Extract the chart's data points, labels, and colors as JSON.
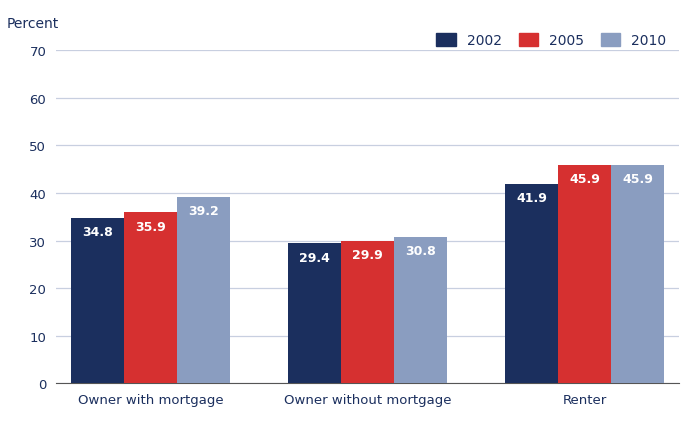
{
  "categories": [
    "Owner with mortgage",
    "Owner without mortgage",
    "Renter"
  ],
  "years": [
    "2002",
    "2005",
    "2010"
  ],
  "values": {
    "2002": [
      34.8,
      29.4,
      41.9
    ],
    "2005": [
      35.9,
      29.9,
      45.9
    ],
    "2010": [
      39.2,
      30.8,
      45.9
    ]
  },
  "colors": {
    "2002": "#1b2f5e",
    "2005": "#d63030",
    "2010": "#8a9dc0"
  },
  "ylabel": "Percent",
  "ylim": [
    0,
    70
  ],
  "yticks": [
    0,
    10,
    20,
    30,
    40,
    50,
    60,
    70
  ],
  "bar_width": 0.28,
  "label_fontsize": 9.5,
  "tick_fontsize": 9.5,
  "legend_fontsize": 10,
  "value_label_color": "#ffffff",
  "value_label_fontsize": 9,
  "background_color": "#ffffff",
  "grid_color": "#c8cfe0",
  "text_color": "#1b2f5e",
  "group_positions": [
    0.0,
    1.15,
    2.3
  ]
}
